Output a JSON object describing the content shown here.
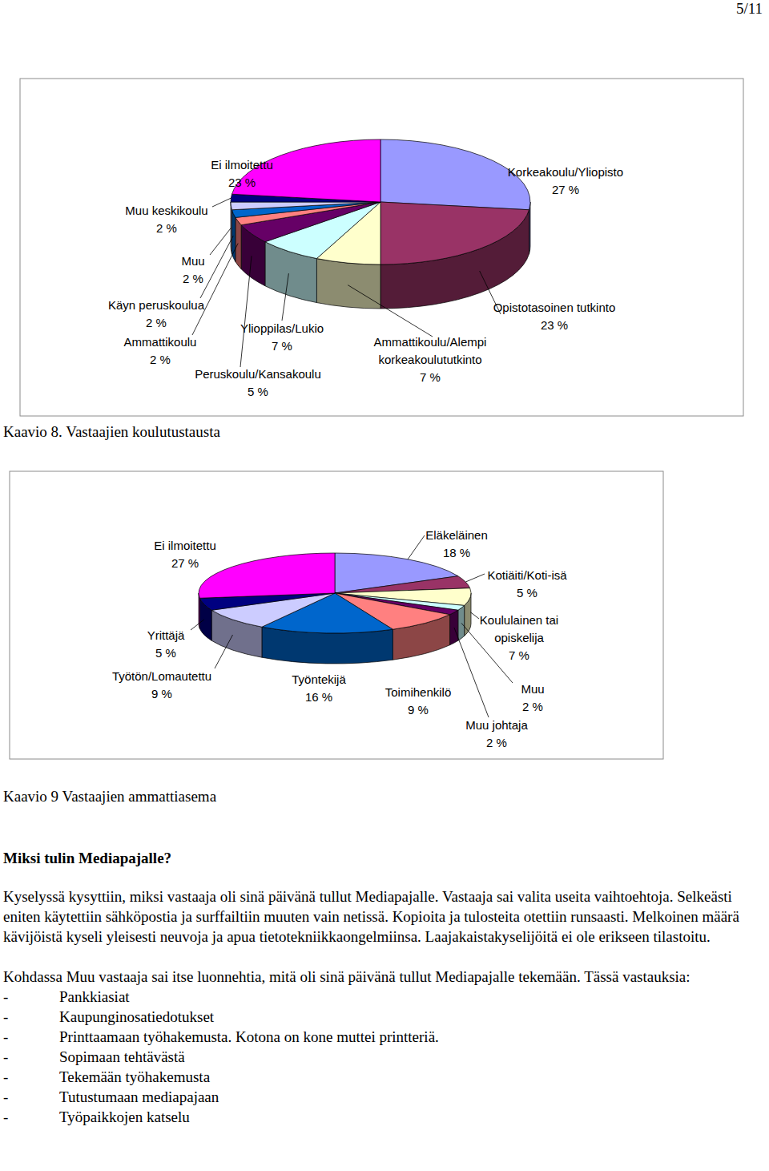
{
  "page_number": "5/11",
  "chart_data": [
    {
      "type": "pie",
      "title": "Kaavio 8. Vastaajien koulutustausta",
      "categories": [
        "Korkeakoulu/Yliopisto",
        "Opistotasoinen tutkinto",
        "Ammattikoulu/Alempi korkeakoulututkinto",
        "Ylioppilas/Lukio",
        "Peruskoulu/Kansakoulu",
        "Ammattikoulu",
        "Käyn peruskoulua",
        "Muu",
        "Muu keskikoulu",
        "Ei ilmoitettu"
      ],
      "values": [
        27,
        23,
        7,
        7,
        5,
        2,
        2,
        2,
        2,
        23
      ],
      "value_labels": [
        "27 %",
        "23 %",
        "7 %",
        "7 %",
        "5 %",
        "2 %",
        "2 %",
        "2 %",
        "2 %",
        "23 %"
      ],
      "colors": [
        "#9999ff",
        "#993366",
        "#ffffcc",
        "#ccffff",
        "#660066",
        "#ff8080",
        "#0066cc",
        "#ccccff",
        "#000080",
        "#ff00ff"
      ],
      "data_labels": true
    },
    {
      "type": "pie",
      "title": "Kaavio 9  Vastaajien ammattiasema",
      "categories": [
        "Eläkeläinen",
        "Kotiäiti/Koti-isä",
        "Koululainen tai opiskelija",
        "Muu",
        "Muu johtaja",
        "Toimihenkilö",
        "Työntekijä",
        "Työtön/Lomautettu",
        "Yrittäjä",
        "Ei ilmoitettu"
      ],
      "values": [
        18,
        5,
        7,
        2,
        2,
        9,
        16,
        9,
        5,
        27
      ],
      "value_labels": [
        "18 %",
        "5 %",
        "7 %",
        "2 %",
        "2 %",
        "9 %",
        "16 %",
        "9 %",
        "5 %",
        "27 %"
      ],
      "colors": [
        "#9999ff",
        "#993366",
        "#ffffcc",
        "#ccffff",
        "#660066",
        "#ff8080",
        "#0066cc",
        "#ccccff",
        "#000080",
        "#ff00ff"
      ],
      "data_labels": true
    }
  ],
  "document": {
    "heading": "Miksi tulin Mediapajalle?",
    "paragraphs": [
      "Kyselyssä kysyttiin, miksi vastaaja oli sinä päivänä tullut Mediapajalle. Vastaaja sai valita useita vaihtoehtoja. Selkeästi eniten käytettiin sähköpostia ja surffailtiin muuten vain netissä. Kopioita ja tulosteita otettiin runsaasti. Melkoinen määrä kävijöistä kyseli yleisesti neuvoja ja apua tietotekniikkaongelmiinsa. Laajakaistakyselijöitä ei ole erikseen tilastoitu.",
      "Kohdassa Muu vastaaja sai itse luonnehtia, mitä oli sinä päivänä tullut Mediapajalle tekemään.  Tässä vastauksia:"
    ],
    "list_marker": "-",
    "list": [
      "Pankkiasiat",
      "Kaupunginosatiedotukset",
      "Printtaamaan työhakemusta. Kotona on kone muttei printteriä.",
      "Sopimaan tehtävästä",
      "Tekemään työhakemusta",
      "Tutustumaan mediapajaan",
      "Työpaikkojen katselu"
    ]
  }
}
